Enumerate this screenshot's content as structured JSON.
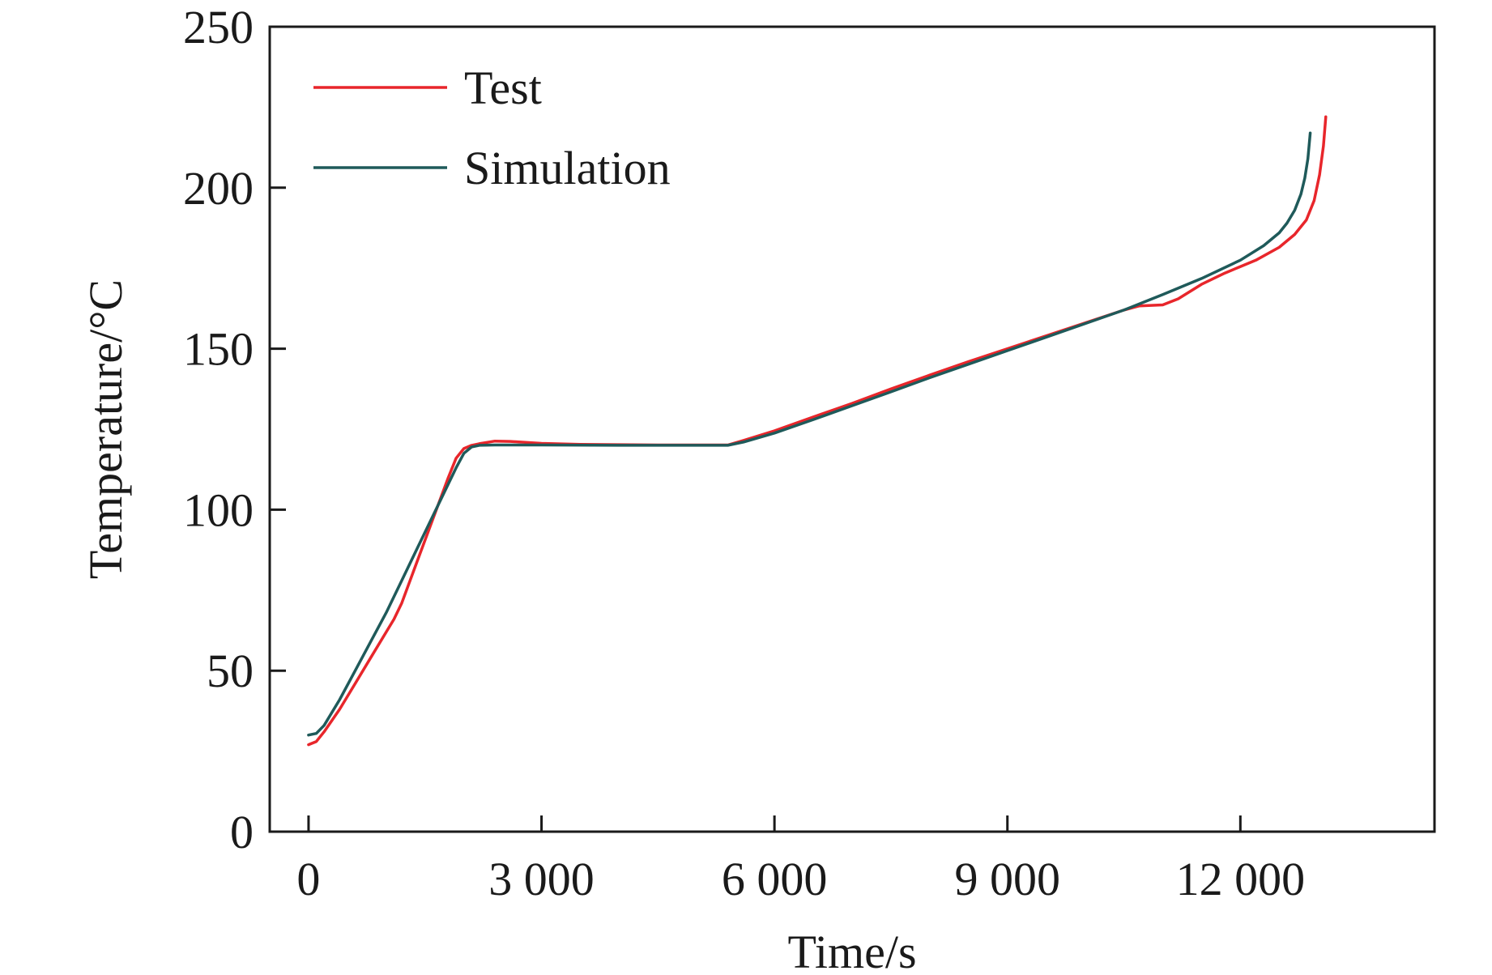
{
  "chart_data": {
    "type": "line",
    "title": "",
    "xlabel": "Time/s",
    "ylabel": "Temperature/°C",
    "xlim": [
      -500,
      14500
    ],
    "ylim": [
      0,
      250
    ],
    "x_ticks": [
      0,
      3000,
      6000,
      9000,
      12000
    ],
    "x_tick_labels": [
      "0",
      "3 000",
      "6 000",
      "9 000",
      "12 000"
    ],
    "y_ticks": [
      0,
      50,
      100,
      150,
      200,
      250
    ],
    "y_tick_labels": [
      "0",
      "50",
      "100",
      "150",
      "200",
      "250"
    ],
    "grid": false,
    "legend_position": "top-left",
    "series": [
      {
        "name": "Test",
        "color": "#e8262b",
        "x": [
          0,
          100,
          200,
          400,
          600,
          800,
          1000,
          1100,
          1200,
          1400,
          1600,
          1800,
          1900,
          2000,
          2100,
          2200,
          2400,
          2600,
          3000,
          3500,
          4000,
          4500,
          5000,
          5400,
          5600,
          6000,
          6500,
          7000,
          7500,
          8000,
          8500,
          9000,
          9500,
          10000,
          10500,
          10700,
          11000,
          11200,
          11500,
          11800,
          12000,
          12200,
          12500,
          12700,
          12850,
          12950,
          13020,
          13070,
          13100
        ],
        "values": [
          27,
          28,
          31,
          38,
          46,
          54,
          62,
          66,
          71,
          84,
          97,
          110,
          116,
          119,
          120,
          120.5,
          121.3,
          121.2,
          120.6,
          120.3,
          120.2,
          120.1,
          120.1,
          120.1,
          121.5,
          124.5,
          128.8,
          133,
          137.5,
          141.8,
          146,
          150,
          154,
          158,
          162,
          163.3,
          163.6,
          165.5,
          170,
          173.5,
          175.5,
          177.5,
          181.5,
          185.5,
          190,
          196,
          204,
          213,
          222
        ]
      },
      {
        "name": "Simulation",
        "color": "#1f5a5a",
        "x": [
          0,
          100,
          200,
          400,
          600,
          800,
          1000,
          1200,
          1400,
          1600,
          1800,
          1900,
          2000,
          2100,
          2200,
          2400,
          3000,
          4000,
          5000,
          5400,
          5600,
          6000,
          6500,
          7000,
          7500,
          8000,
          8500,
          9000,
          9500,
          10000,
          10500,
          11000,
          11500,
          12000,
          12300,
          12500,
          12600,
          12700,
          12780,
          12830,
          12870,
          12900
        ],
        "values": [
          30,
          30.5,
          33,
          41,
          50,
          59,
          68,
          78,
          88,
          98,
          108,
          113,
          117.5,
          119.5,
          120,
          120.1,
          120.1,
          120,
          120,
          120,
          121,
          123.8,
          128,
          132.3,
          136.6,
          141,
          145.2,
          149.4,
          153.6,
          157.8,
          162,
          166.8,
          171.8,
          177.5,
          182,
          186,
          189,
          193,
          198,
          203,
          209,
          217
        ]
      }
    ]
  }
}
